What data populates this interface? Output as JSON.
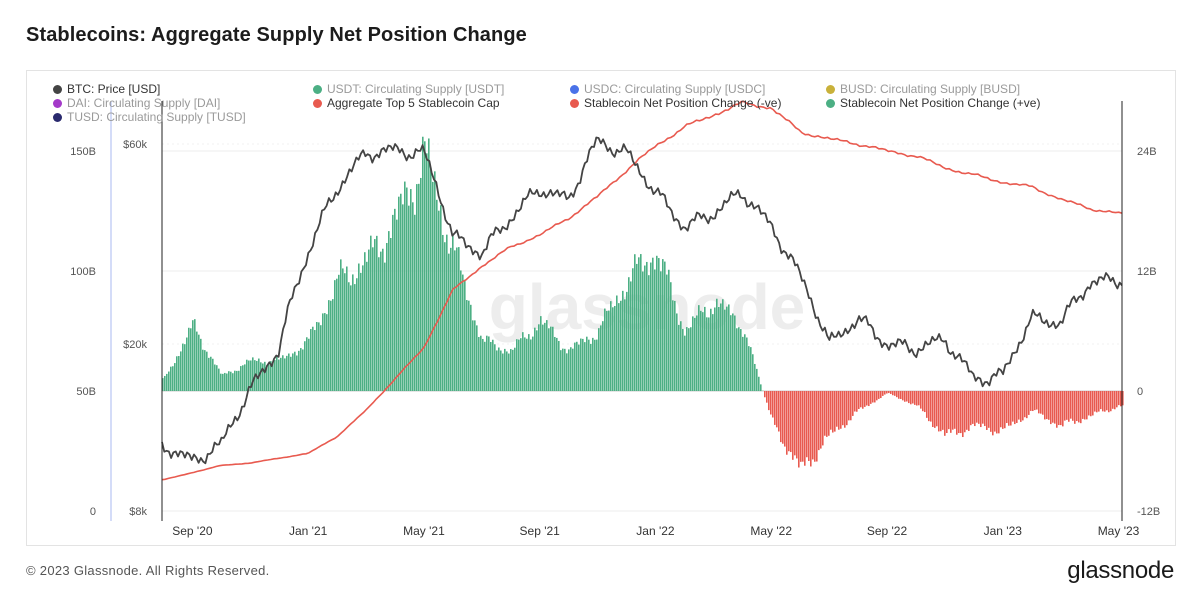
{
  "title": "Stablecoins: Aggregate Supply Net Position Change",
  "footer": {
    "copyright": "© 2023 Glassnode. All Rights Reserved.",
    "logo": "glassnode"
  },
  "watermark": "glassnode",
  "legend": [
    {
      "label": "BTC: Price [USD]",
      "color": "#444444",
      "muted": false
    },
    {
      "label": "USDT: Circulating Supply [USDT]",
      "color": "#4caf84",
      "muted": true
    },
    {
      "label": "USDC: Circulating Supply [USDC]",
      "color": "#4a72e8",
      "muted": true
    },
    {
      "label": "BUSD: Circulating Supply [BUSD]",
      "color": "#c9b13a",
      "muted": true
    },
    {
      "label": "DAI: Circulating Supply [DAI]",
      "color": "#a43ac9",
      "muted": true
    },
    {
      "label": "Aggregate Top 5 Stablecoin Cap",
      "color": "#e85a4f",
      "muted": false
    },
    {
      "label": "Stablecoin Net Position Change (-ve)",
      "color": "#e85a4f",
      "muted": false
    },
    {
      "label": "Stablecoin Net Position Change (+ve)",
      "color": "#4caf84",
      "muted": false
    },
    {
      "label": "TUSD: Circulating Supply [TUSD]",
      "color": "#2a2a6e",
      "muted": true
    }
  ],
  "chart_data": {
    "type": "area",
    "title": "Stablecoins: Aggregate Supply Net Position Change",
    "x_ticks": [
      "Sep '20",
      "Jan '21",
      "May '21",
      "Sep '21",
      "Jan '22",
      "May '22",
      "Sep '22",
      "Jan '23",
      "May '23"
    ],
    "axes": {
      "left_outer": {
        "ticks": [
          "0",
          "50B",
          "100B",
          "150B"
        ],
        "values": [
          0,
          50,
          100,
          150
        ],
        "unit": "B",
        "series": "Aggregate Top 5 Stablecoin Cap"
      },
      "left_inner": {
        "ticks": [
          "$8k",
          "$20k",
          "$60k"
        ],
        "values": [
          8000,
          20000,
          60000
        ],
        "scale": "log",
        "series": "BTC: Price [USD]"
      },
      "right": {
        "ticks": [
          "-12B",
          "0",
          "12B",
          "24B"
        ],
        "values": [
          -12,
          0,
          12,
          24
        ],
        "unit": "B",
        "series": "Stablecoin Net Position Change"
      }
    },
    "grid": true,
    "legend_position": "top",
    "series": [
      {
        "name": "BTC: Price [USD]",
        "color": "#444444",
        "points": [
          [
            "Aug '20",
            11500
          ],
          [
            "Sep '20",
            10500
          ],
          [
            "Oct '20",
            11500
          ],
          [
            "Nov '20",
            15500
          ],
          [
            "Dec '20",
            19500
          ],
          [
            "Jan '21",
            33000
          ],
          [
            "Feb '21",
            47000
          ],
          [
            "Mar '21",
            57000
          ],
          [
            "Apr '21",
            58000
          ],
          [
            "May '21",
            57000
          ],
          [
            "Jun '21",
            36000
          ],
          [
            "Jul '21",
            33000
          ],
          [
            "Aug '21",
            40000
          ],
          [
            "Sep '21",
            47000
          ],
          [
            "Oct '21",
            44000
          ],
          [
            "Nov '21",
            61000
          ],
          [
            "Dec '21",
            57000
          ],
          [
            "Jan '22",
            46000
          ],
          [
            "Feb '22",
            38000
          ],
          [
            "Mar '22",
            41000
          ],
          [
            "Apr '22",
            46000
          ],
          [
            "May '22",
            38000
          ],
          [
            "Jun '22",
            29000
          ],
          [
            "Jul '22",
            20000
          ],
          [
            "Aug '22",
            23000
          ],
          [
            "Sep '22",
            20000
          ],
          [
            "Oct '22",
            19500
          ],
          [
            "Nov '22",
            20500
          ],
          [
            "Dec '22",
            16500
          ],
          [
            "Jan '23",
            16800
          ],
          [
            "Feb '23",
            23000
          ],
          [
            "Mar '23",
            22500
          ],
          [
            "Apr '23",
            28000
          ],
          [
            "May '23",
            28500
          ]
        ]
      },
      {
        "name": "Aggregate Top 5 Stablecoin Cap",
        "color": "#e85a4f",
        "unit": "B",
        "points": [
          [
            "Aug '20",
            13
          ],
          [
            "Sep '20",
            16
          ],
          [
            "Oct '20",
            19
          ],
          [
            "Nov '20",
            20
          ],
          [
            "Dec '20",
            22
          ],
          [
            "Jan '21",
            24
          ],
          [
            "Feb '21",
            31
          ],
          [
            "Mar '21",
            42
          ],
          [
            "Apr '21",
            55
          ],
          [
            "May '21",
            68
          ],
          [
            "Jun '21",
            92
          ],
          [
            "Jul '21",
            102
          ],
          [
            "Aug '21",
            110
          ],
          [
            "Sep '21",
            115
          ],
          [
            "Oct '21",
            122
          ],
          [
            "Nov '21",
            131
          ],
          [
            "Dec '21",
            142
          ],
          [
            "Jan '22",
            152
          ],
          [
            "Feb '22",
            160
          ],
          [
            "Mar '22",
            165
          ],
          [
            "Apr '22",
            170
          ],
          [
            "May '22",
            168
          ],
          [
            "Jun '22",
            158
          ],
          [
            "Jul '22",
            155
          ],
          [
            "Aug '22",
            153
          ],
          [
            "Sep '22",
            150
          ],
          [
            "Oct '22",
            148
          ],
          [
            "Nov '22",
            143
          ],
          [
            "Dec '22",
            140
          ],
          [
            "Jan '23",
            137
          ],
          [
            "Feb '23",
            135
          ],
          [
            "Mar '23",
            130
          ],
          [
            "Apr '23",
            126
          ],
          [
            "May '23",
            124
          ]
        ]
      },
      {
        "name": "Stablecoin Net Position Change",
        "colors": {
          "positive": "#4caf84",
          "negative": "#e85a4f"
        },
        "unit": "B",
        "points": [
          [
            "Aug '20",
            1.2
          ],
          [
            "Sep '20",
            6.5
          ],
          [
            "Oct '20",
            1.5
          ],
          [
            "Nov '20",
            3
          ],
          [
            "Dec '20",
            3
          ],
          [
            "Jan '21",
            5
          ],
          [
            "Feb '21",
            11
          ],
          [
            "Mar '21",
            13
          ],
          [
            "Apr '21",
            17
          ],
          [
            "May '21",
            23.5
          ],
          [
            "Jun '21",
            14
          ],
          [
            "Jul '21",
            5
          ],
          [
            "Aug '21",
            4
          ],
          [
            "Sep '21",
            7
          ],
          [
            "Oct '21",
            4
          ],
          [
            "Nov '21",
            6
          ],
          [
            "Dec '21",
            11
          ],
          [
            "Jan '22",
            14
          ],
          [
            "Feb '22",
            6
          ],
          [
            "Mar '22",
            9
          ],
          [
            "Apr '22",
            6.5
          ],
          [
            "May '22",
            -3
          ],
          [
            "Jun '22",
            -8
          ],
          [
            "Jul '22",
            -4.5
          ],
          [
            "Aug '22",
            -2
          ],
          [
            "Sep '22",
            -0.2
          ],
          [
            "Oct '22",
            -1.5
          ],
          [
            "Nov '22",
            -4.5
          ],
          [
            "Dec '22",
            -3.5
          ],
          [
            "Jan '23",
            -4
          ],
          [
            "Feb '23",
            -2
          ],
          [
            "Mar '23",
            -3.5
          ],
          [
            "Apr '23",
            -2.5
          ],
          [
            "May '23",
            -1.5
          ]
        ]
      }
    ]
  }
}
